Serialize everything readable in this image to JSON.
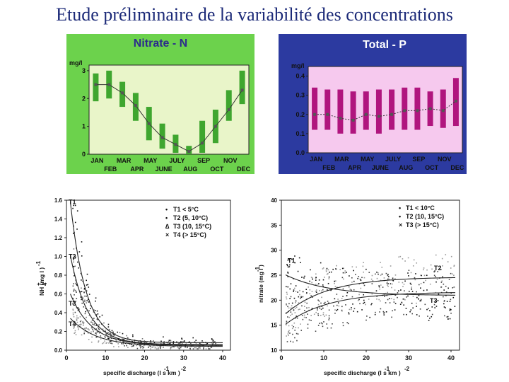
{
  "slide": {
    "title": "Etude préliminaire de la variabilité des concentrations"
  },
  "chart_data": [
    {
      "type": "line",
      "title": "Nitrate - N",
      "unit": "mg/l",
      "categories": [
        "JAN",
        "FEB",
        "MAR",
        "APR",
        "MAY",
        "JUNE",
        "JULY",
        "AUG",
        "SEP",
        "OCT",
        "NOV",
        "DEC"
      ],
      "label_row1": [
        "JAN",
        "MAR",
        "MAY",
        "JULY",
        "SEP",
        "NOV"
      ],
      "label_row2": [
        "FEB",
        "APR",
        "JUNE",
        "AUG",
        "OCT",
        "DEC"
      ],
      "yticks": [
        "0",
        "1",
        "2",
        "3"
      ],
      "ylim": [
        0,
        3.2
      ],
      "mean": [
        2.5,
        2.5,
        2.2,
        1.75,
        1.1,
        0.6,
        0.35,
        0.1,
        0.4,
        1.0,
        1.6,
        2.3
      ],
      "low": [
        1.9,
        2.0,
        1.7,
        1.2,
        0.5,
        0.2,
        0.05,
        0.0,
        0.05,
        0.4,
        1.2,
        1.8
      ],
      "high": [
        2.9,
        3.0,
        2.6,
        2.2,
        1.7,
        1.1,
        0.7,
        0.3,
        1.2,
        1.6,
        2.3,
        3.0
      ],
      "colors": {
        "panel": "#6cd24c",
        "plot": "#e9f5c9",
        "bar": "#3fa62f",
        "header": "#2b2b8c"
      }
    },
    {
      "type": "line",
      "title": "Total - P",
      "unit": "mg/l",
      "categories": [
        "JAN",
        "FEB",
        "MAR",
        "APR",
        "MAY",
        "JUNE",
        "JULY",
        "AUG",
        "SEP",
        "OCT",
        "NOV",
        "DEC"
      ],
      "label_row1": [
        "JAN",
        "MAR",
        "MAY",
        "JULY",
        "SEP",
        "NOV"
      ],
      "label_row2": [
        "FEB",
        "APR",
        "JUNE",
        "AUG",
        "OCT",
        "DEC"
      ],
      "yticks": [
        "0.0",
        "0.1",
        "0.2",
        "0.3",
        "0.4"
      ],
      "ylim": [
        0,
        0.45
      ],
      "mean": [
        0.2,
        0.2,
        0.18,
        0.17,
        0.2,
        0.19,
        0.2,
        0.22,
        0.22,
        0.23,
        0.22,
        0.27
      ],
      "low": [
        0.12,
        0.12,
        0.1,
        0.1,
        0.12,
        0.1,
        0.12,
        0.12,
        0.12,
        0.14,
        0.13,
        0.14
      ],
      "high": [
        0.34,
        0.33,
        0.33,
        0.32,
        0.32,
        0.33,
        0.33,
        0.34,
        0.34,
        0.32,
        0.33,
        0.39
      ],
      "colors": {
        "panel": "#2c3aa0",
        "plot": "#f6c9ee",
        "bar": "#b0157e",
        "header": "#ffffff"
      }
    },
    {
      "type": "scatter",
      "xlabel": "specific discharge (l s km )",
      "xlabel_sup": "-1",
      "xlabel_sup2": "-2",
      "ylabel": "NH  (mg l  )",
      "ylabel_sub": "4",
      "ylabel_sup": "+",
      "ylabel_sup2": "-1",
      "xticks": [
        0,
        10,
        20,
        30,
        40
      ],
      "yticks": [
        "0.0",
        "0.2",
        "0.4",
        "0.6",
        "0.8",
        "1.0",
        "1.2",
        "1.4",
        "1.6"
      ],
      "xlim": [
        0,
        42
      ],
      "ylim": [
        0,
        1.6
      ],
      "legend": [
        "T1 < 5°C",
        "T2 (5, 10°C)",
        "T3 (10, 15°C)",
        "T4 (> 15°C)"
      ],
      "legend_markers": [
        "•",
        "•",
        "∆",
        "×"
      ],
      "curve_labels": [
        "T1",
        "T2",
        "T3",
        "T4"
      ],
      "series": [
        {
          "a": 0.08,
          "b": 1.5,
          "c": 0.25
        },
        {
          "a": 0.06,
          "b": 0.95,
          "c": 0.22
        },
        {
          "a": 0.05,
          "b": 0.55,
          "c": 0.18
        },
        {
          "a": 0.04,
          "b": 0.3,
          "c": 0.15
        }
      ]
    },
    {
      "type": "scatter",
      "xlabel": "specific discharge (l s  km )",
      "xlabel_sup": "-1",
      "xlabel_sup2": "-2",
      "ylabel": "nitrate (mg l  )",
      "ylabel_sup": "-1",
      "xticks": [
        0,
        10,
        20,
        30,
        40
      ],
      "yticks": [
        "10",
        "15",
        "20",
        "25",
        "30",
        "35",
        "40"
      ],
      "xlim": [
        0,
        42
      ],
      "ylim": [
        10,
        40
      ],
      "legend": [
        "T1 < 10°C",
        "T2 (10, 15°C)",
        "T3 (> 15°C)"
      ],
      "legend_markers": [
        "•",
        "•",
        "×"
      ],
      "curve_labels": [
        "T1",
        "T2",
        "T3"
      ],
      "series": [
        {
          "start": 25.5,
          "end": 21
        },
        {
          "start": 16.5,
          "end": 24.5
        },
        {
          "start": 14.5,
          "end": 21.5
        }
      ]
    }
  ]
}
